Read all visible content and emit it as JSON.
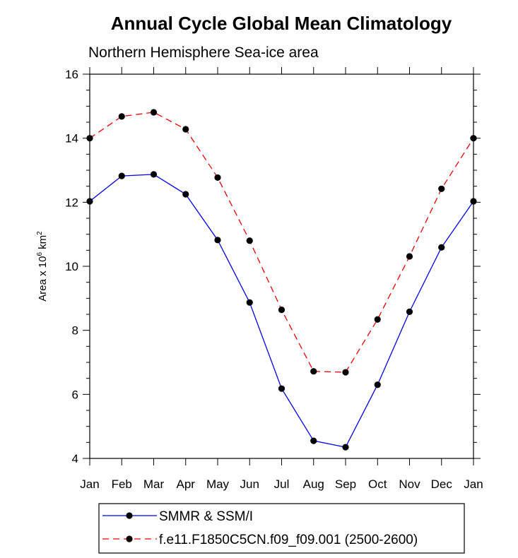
{
  "chart_data": {
    "type": "line",
    "title": "Annual Cycle Global Mean Climatology",
    "subtitle": "Northern Hemisphere Sea-ice area",
    "xlabel": "",
    "ylabel": "Area x 10",
    "ylabel_exponent": "6",
    "ylabel_unit": "km",
    "ylabel_unit_exponent": "2",
    "categories": [
      "Jan",
      "Feb",
      "Mar",
      "Apr",
      "May",
      "Jun",
      "Jul",
      "Aug",
      "Sep",
      "Oct",
      "Nov",
      "Dec",
      "Jan"
    ],
    "ylim": [
      4,
      16
    ],
    "yticks": [
      4,
      6,
      8,
      10,
      12,
      14,
      16
    ],
    "yticklabels": [
      "4",
      "6",
      "8",
      "10",
      "12",
      "14",
      "16"
    ],
    "series": [
      {
        "name": "SMMR & SSM/I",
        "color": "#0000ee",
        "dash": "solid",
        "values": [
          12.03,
          12.82,
          12.87,
          12.25,
          10.82,
          8.87,
          6.18,
          4.55,
          4.35,
          6.3,
          8.58,
          10.59,
          12.03
        ]
      },
      {
        "name": "f.e11.F1850C5CN.f09_f09.001 (2500-2600)",
        "color": "#ee0000",
        "dash": "dashed",
        "values": [
          14.0,
          14.68,
          14.81,
          14.28,
          12.77,
          10.8,
          8.64,
          6.72,
          6.69,
          8.34,
          10.31,
          12.42,
          14.0
        ]
      }
    ],
    "legend": {
      "position": "bottom"
    },
    "grid": false
  }
}
